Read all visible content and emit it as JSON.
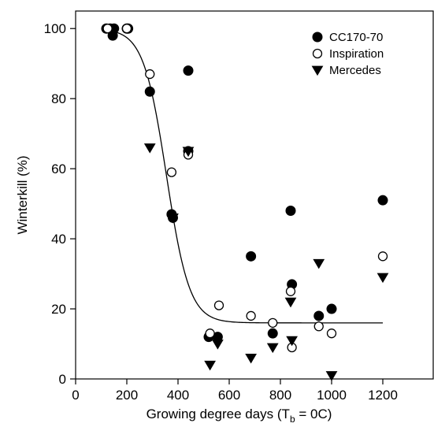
{
  "chart_data": {
    "type": "scatter",
    "xlabel": "Growing degree days (T",
    "xlabel_sub": "b",
    "xlabel_suffix": " = 0C)",
    "ylabel": "Winterkill (%)",
    "xlim": [
      0,
      1400
    ],
    "ylim": [
      0,
      105
    ],
    "xticks": [
      0,
      200,
      400,
      600,
      800,
      1000,
      1200
    ],
    "yticks": [
      0,
      20,
      40,
      60,
      80,
      100
    ],
    "grid": false,
    "legend_position": "top-right",
    "series": [
      {
        "name": "CC170-70",
        "marker": "filled-circle",
        "color": "#000000",
        "points": [
          [
            120,
            100
          ],
          [
            135,
            100
          ],
          [
            150,
            100
          ],
          [
            145,
            98
          ],
          [
            200,
            100
          ],
          [
            205,
            100
          ],
          [
            290,
            82
          ],
          [
            375,
            47
          ],
          [
            380,
            46
          ],
          [
            440,
            88
          ],
          [
            440,
            65
          ],
          [
            520,
            12
          ],
          [
            555,
            12
          ],
          [
            685,
            35
          ],
          [
            770,
            13
          ],
          [
            840,
            48
          ],
          [
            845,
            27
          ],
          [
            950,
            18
          ],
          [
            1000,
            20
          ],
          [
            1200,
            51
          ]
        ]
      },
      {
        "name": "Inspiration",
        "marker": "open-circle",
        "color": "#000000",
        "points": [
          [
            125,
            100
          ],
          [
            200,
            100
          ],
          [
            290,
            87
          ],
          [
            375,
            59
          ],
          [
            440,
            64
          ],
          [
            525,
            13
          ],
          [
            560,
            21
          ],
          [
            685,
            18
          ],
          [
            770,
            16
          ],
          [
            840,
            25
          ],
          [
            845,
            9
          ],
          [
            950,
            15
          ],
          [
            1000,
            13
          ],
          [
            1200,
            35
          ]
        ]
      },
      {
        "name": "Mercedes",
        "marker": "down-triangle",
        "color": "#000000",
        "points": [
          [
            290,
            66
          ],
          [
            380,
            46
          ],
          [
            440,
            65
          ],
          [
            525,
            4
          ],
          [
            555,
            10
          ],
          [
            685,
            6
          ],
          [
            770,
            9
          ],
          [
            840,
            22
          ],
          [
            845,
            11
          ],
          [
            950,
            33
          ],
          [
            1000,
            1
          ],
          [
            1200,
            29
          ]
        ]
      }
    ],
    "fit_curve": {
      "form": "logistic",
      "lower": 16,
      "upper": 100,
      "midpoint": 355,
      "scale": 45,
      "x_range": [
        120,
        1200
      ]
    }
  }
}
